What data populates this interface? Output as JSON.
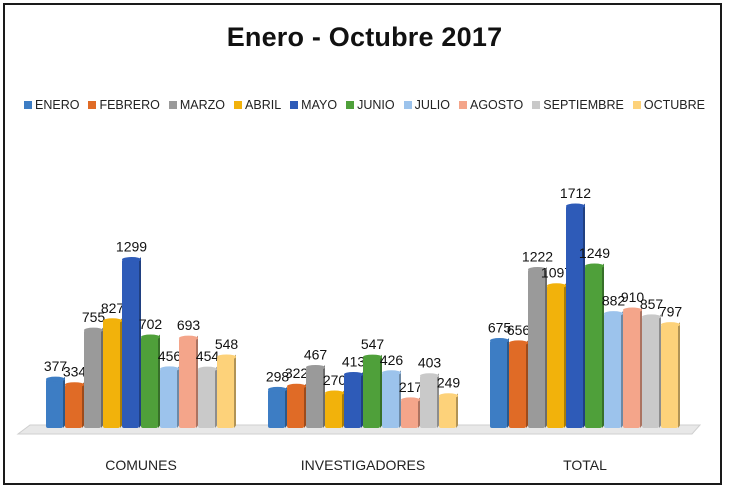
{
  "chart_data": {
    "type": "bar",
    "title": "Enero - Octubre 2017",
    "categories": [
      "COMUNES",
      "INVESTIGADORES",
      "TOTAL"
    ],
    "series": [
      {
        "name": "ENERO",
        "color": "#3d7dc4",
        "values": [
          377,
          298,
          675
        ]
      },
      {
        "name": "FEBRERO",
        "color": "#e06b26",
        "values": [
          334,
          322,
          656
        ]
      },
      {
        "name": "MARZO",
        "color": "#9a9a9a",
        "values": [
          755,
          467,
          1222
        ]
      },
      {
        "name": "ABRIL",
        "color": "#f2b20b",
        "values": [
          827,
          270,
          1097
        ]
      },
      {
        "name": "MAYO",
        "color": "#2e5bb8",
        "values": [
          1299,
          413,
          1712
        ]
      },
      {
        "name": "JUNIO",
        "color": "#4fa03a",
        "values": [
          702,
          547,
          1249
        ]
      },
      {
        "name": "JULIO",
        "color": "#9cc3ec",
        "values": [
          456,
          426,
          882
        ]
      },
      {
        "name": "AGOSTO",
        "color": "#f4a58a",
        "values": [
          693,
          217,
          910
        ]
      },
      {
        "name": "SEPTIEMBRE",
        "color": "#c9c9c9",
        "values": [
          454,
          403,
          857
        ]
      },
      {
        "name": "OCTUBRE",
        "color": "#fdd27a",
        "values": [
          548,
          249,
          797
        ]
      }
    ],
    "ylim": [
      0,
      1712
    ],
    "legend_position": "top",
    "grid": false
  }
}
